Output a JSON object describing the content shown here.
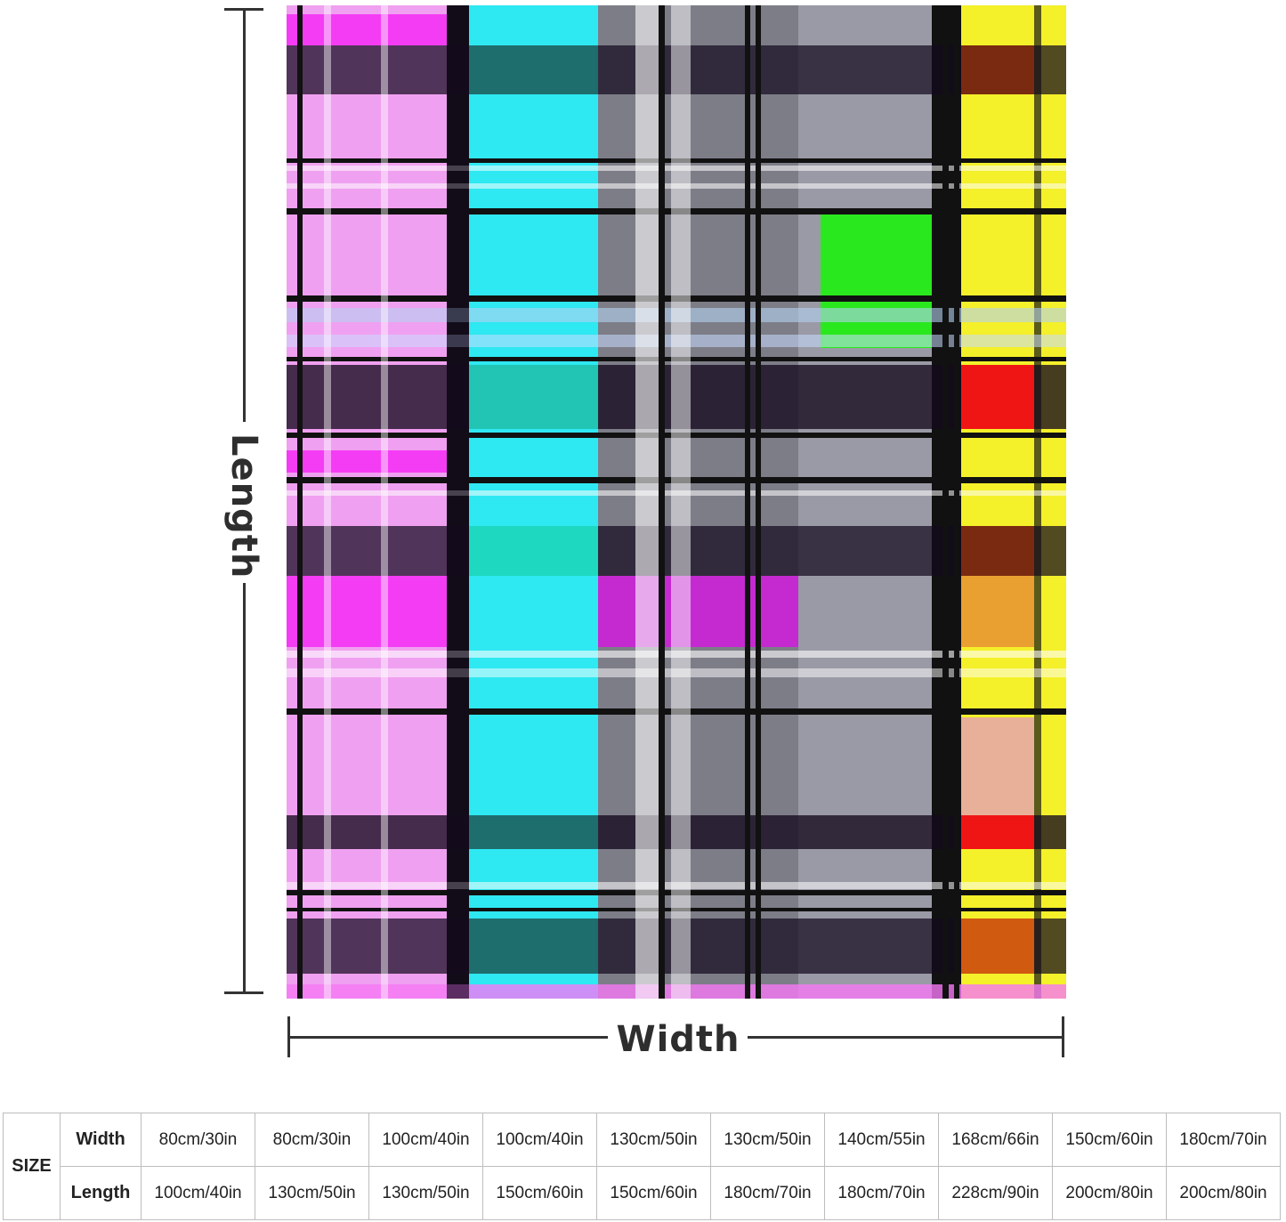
{
  "product": {
    "kind": "plaid throw blanket",
    "colors": {
      "magenta": "#f53cf5",
      "cyan": "#2ee8f2",
      "black": "#111111",
      "purple": "#8a2f9c",
      "yellow": "#f4f02a",
      "green": "#2ae81e",
      "red": "#f01515",
      "orange": "#eaa030"
    }
  },
  "dimensions": {
    "length_label": "Length",
    "width_label": "Width"
  },
  "size_table": {
    "size_header": "SIZE",
    "width_header": "Width",
    "length_header": "Length",
    "widths": [
      "80cm/30in",
      "80cm/30in",
      "100cm/40in",
      "100cm/40in",
      "130cm/50in",
      "130cm/50in",
      "140cm/55in",
      "168cm/66in",
      "150cm/60in",
      "180cm/70in"
    ],
    "lengths": [
      "100cm/40in",
      "130cm/50in",
      "130cm/50in",
      "150cm/60in",
      "150cm/60in",
      "180cm/70in",
      "180cm/70in",
      "228cm/90in",
      "200cm/80in",
      "200cm/80in"
    ]
  }
}
